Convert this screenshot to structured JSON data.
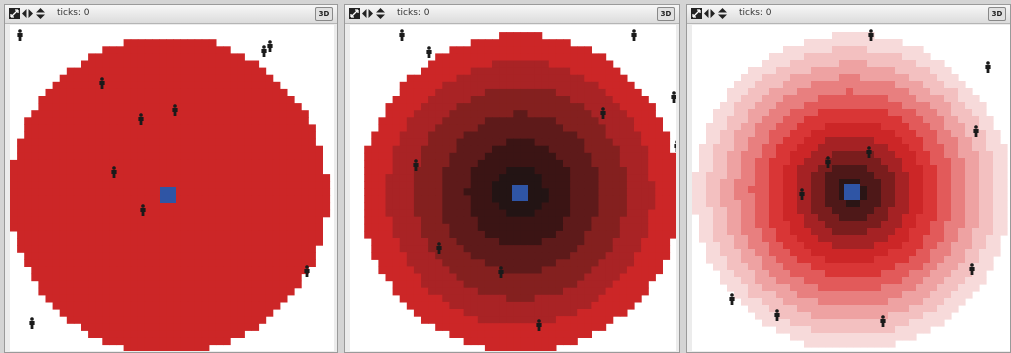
{
  "panels": [
    {
      "ticks_label": "ticks: 0",
      "btn_3d_label": "3D",
      "patch_colors": [
        "#cc2627"
      ],
      "center_color": "#2f55a5",
      "background": "#ffffff",
      "icons": [
        "zoom-icon",
        "left-right-arrows-icon",
        "up-down-arrows-icon"
      ]
    },
    {
      "ticks_label": "ticks: 0",
      "btn_3d_label": "3D",
      "patch_colors": [
        "#cc2627",
        "#a92325",
        "#84201f",
        "#5e1a1a",
        "#3b1414",
        "#231414"
      ],
      "center_color": "#2f55a5",
      "background": "#ffffff",
      "icons": [
        "zoom-icon",
        "left-right-arrows-icon",
        "up-down-arrows-icon"
      ]
    },
    {
      "ticks_label": "ticks: 0",
      "btn_3d_label": "3D",
      "patch_colors": [
        "#f7dada",
        "#f3c0c0",
        "#eea2a2",
        "#e87f7f",
        "#e25a5a",
        "#d93636",
        "#cc2627",
        "#a52224",
        "#7a1d1d",
        "#4e1818",
        "#2b1515"
      ],
      "center_color": "#2f55a5",
      "background": "#ffffff",
      "icons": [
        "zoom-icon",
        "left-right-arrows-icon",
        "up-down-arrows-icon"
      ]
    }
  ],
  "colors": {
    "agent": "#1a1a1a"
  }
}
